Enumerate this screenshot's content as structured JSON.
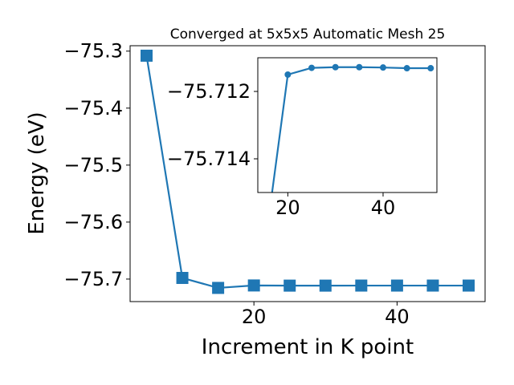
{
  "chart_data": [
    {
      "type": "line",
      "title": "Converged at 5x5x5 Automatic Mesh 25",
      "xlabel": "Increment in K point",
      "ylabel": "Energy (eV)",
      "xlim": [
        2.7,
        52.3
      ],
      "ylim": [
        -75.7395,
        -75.2905
      ],
      "xticks": [
        20,
        40
      ],
      "xtick_labels": [
        "20",
        "40"
      ],
      "yticks": [
        -75.7,
        -75.6,
        -75.5,
        -75.4,
        -75.3
      ],
      "ytick_labels": [
        "−75.7",
        "−75.6",
        "−75.5",
        "−75.4",
        "−75.3"
      ],
      "marker": "square",
      "color": "#1f77b4",
      "grid": false,
      "series": [
        {
          "x": [
            5,
            10,
            15,
            20,
            25,
            30,
            35,
            40,
            45,
            50
          ],
          "y": [
            -75.308,
            -75.698,
            -75.7155,
            -75.7112,
            -75.7115,
            -75.7115,
            -75.7114,
            -75.7114,
            -75.7114,
            -75.7114
          ]
        }
      ]
    },
    {
      "type": "line",
      "title": "",
      "xlabel": "",
      "ylabel": "",
      "xlim": [
        13.7,
        51.3
      ],
      "ylim": [
        -75.715,
        -75.711
      ],
      "xticks": [
        20,
        40
      ],
      "xtick_labels": [
        "20",
        "40"
      ],
      "yticks": [
        -75.714,
        -75.712
      ],
      "ytick_labels": [
        "−75.714",
        "−75.712"
      ],
      "marker": "circle",
      "color": "#1f77b4",
      "grid": false,
      "series": [
        {
          "x": [
            15,
            20,
            25,
            30,
            35,
            40,
            45,
            50
          ],
          "y": [
            -75.7168,
            -75.7115,
            -75.7113,
            -75.71128,
            -75.71128,
            -75.71129,
            -75.71131,
            -75.71131
          ]
        }
      ]
    }
  ]
}
